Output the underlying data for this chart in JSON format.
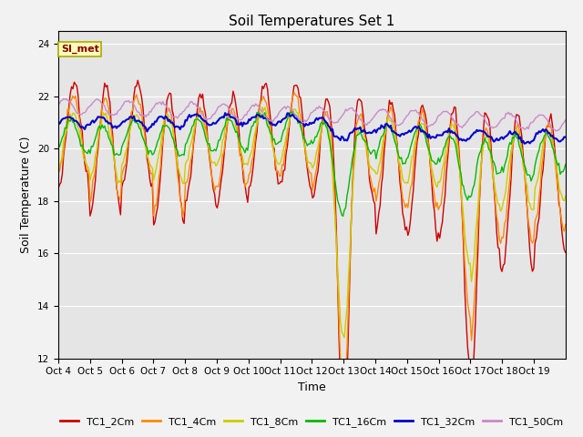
{
  "title": "Soil Temperatures Set 1",
  "xlabel": "Time",
  "ylabel": "Soil Temperature (C)",
  "ylim": [
    12,
    24.5
  ],
  "yticks": [
    12,
    14,
    16,
    18,
    20,
    22,
    24
  ],
  "x_tick_labels": [
    "Oct 4",
    "Oct 5",
    "Oct 6",
    "Oct 7",
    "Oct 8",
    "Oct 9",
    "Oct 10",
    "Oct 11",
    "Oct 12",
    "Oct 13",
    "Oct 14",
    "Oct 15",
    "Oct 16",
    "Oct 17",
    "Oct 18",
    "Oct 19"
  ],
  "annotation_text": "SI_met",
  "colors": {
    "TC1_2Cm": "#cc0000",
    "TC1_4Cm": "#ff8800",
    "TC1_8Cm": "#cccc00",
    "TC1_16Cm": "#00bb00",
    "TC1_32Cm": "#0000cc",
    "TC1_50Cm": "#cc88cc"
  },
  "background_color": "#e5e5e5",
  "fig_color": "#f2f2f2",
  "grid_color": "#ffffff",
  "title_fontsize": 11,
  "axis_label_fontsize": 9,
  "tick_fontsize": 7.5,
  "legend_fontsize": 8,
  "linewidth": 1.0
}
